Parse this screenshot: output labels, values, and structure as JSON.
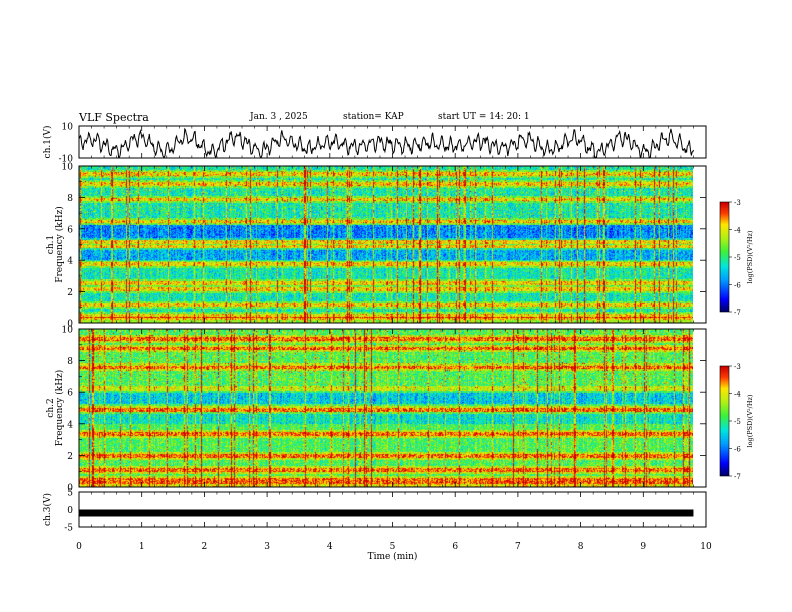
{
  "header": {
    "title": "VLF Spectra",
    "date": "Jan. 3 , 2025",
    "station": "station= KAP",
    "start_ut": "start UT = 14: 20: 1"
  },
  "colorbar": {
    "label": "log(PSD)(V²/Hz)",
    "ticks": [
      "-3",
      "-4",
      "-5",
      "-6",
      "-7"
    ],
    "range": [
      -7,
      -3
    ]
  },
  "chart_data": [
    {
      "type": "line",
      "name": "ch1-voltage",
      "ylabel": "ch.1(V)",
      "ylim": [
        -10,
        10
      ],
      "yticks": [
        "10",
        "-10"
      ],
      "xlim": [
        0,
        10
      ],
      "description_series": "oscillating waveform"
    },
    {
      "type": "heatmap",
      "name": "ch1-spectrogram",
      "ylabel_line1": "ch.1",
      "ylabel_line2": "Frequency (kHz)",
      "ylim": [
        0,
        10
      ],
      "yticks": [
        "0",
        "2",
        "4",
        "6",
        "8",
        "10"
      ],
      "xlim": [
        0,
        9.8
      ],
      "bands_khz": [
        0.5,
        1.2,
        2.2,
        2.6,
        3.8,
        4.9,
        5.2,
        6.5,
        7.9,
        8.9,
        9.5
      ],
      "background_log_psd": -5.2
    },
    {
      "type": "heatmap",
      "name": "ch2-spectrogram",
      "ylabel_line1": "ch.2",
      "ylabel_line2": "Frequency (kHz)",
      "ylim": [
        0,
        10
      ],
      "yticks": [
        "0",
        "2",
        "4",
        "6",
        "8",
        "10"
      ],
      "xlim": [
        0,
        9.8
      ],
      "bands_khz": [
        0.5,
        1.1,
        2.0,
        3.4,
        4.9,
        6.2,
        7.6,
        8.8,
        9.4
      ],
      "background_log_psd": -4.8
    },
    {
      "type": "line",
      "name": "ch3-voltage",
      "ylabel": "ch.3(V)",
      "ylim": [
        -5,
        5
      ],
      "yticks": [
        "5",
        "0",
        "-5"
      ],
      "xlim": [
        0,
        10
      ],
      "value": -1
    }
  ],
  "xaxis": {
    "label": "Time (min)",
    "range": [
      0,
      10
    ],
    "ticks": [
      "0",
      "1",
      "2",
      "3",
      "4",
      "5",
      "6",
      "7",
      "8",
      "9",
      "10"
    ]
  }
}
